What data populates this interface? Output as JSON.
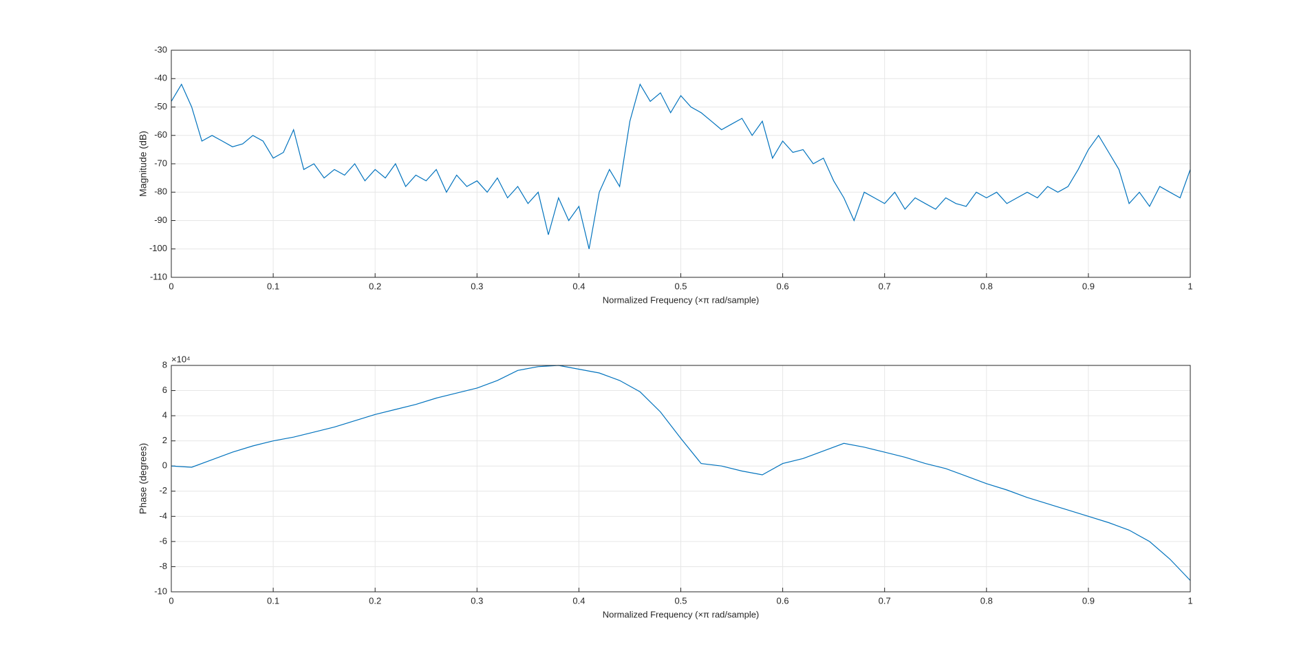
{
  "chart_data": [
    {
      "type": "line",
      "xlabel": "Normalized Frequency  (×π rad/sample)",
      "ylabel": "Magnitude (dB)",
      "xlim": [
        0,
        1
      ],
      "xticks": [
        0,
        0.1,
        0.2,
        0.3,
        0.4,
        0.5,
        0.6,
        0.7,
        0.8,
        0.9,
        1
      ],
      "ylim": [
        -110,
        -30
      ],
      "yticks": [
        -110,
        -100,
        -90,
        -80,
        -70,
        -60,
        -50,
        -40,
        -30
      ],
      "grid": true,
      "series": [
        {
          "color": "#0072bd",
          "x": [
            0,
            0.01,
            0.02,
            0.03,
            0.04,
            0.05,
            0.06,
            0.07,
            0.08,
            0.09,
            0.1,
            0.11,
            0.12,
            0.13,
            0.14,
            0.15,
            0.16,
            0.17,
            0.18,
            0.19,
            0.2,
            0.21,
            0.22,
            0.23,
            0.24,
            0.25,
            0.26,
            0.27,
            0.28,
            0.29,
            0.3,
            0.31,
            0.32,
            0.33,
            0.34,
            0.35,
            0.36,
            0.37,
            0.38,
            0.39,
            0.4,
            0.41,
            0.42,
            0.43,
            0.44,
            0.45,
            0.46,
            0.47,
            0.48,
            0.49,
            0.5,
            0.51,
            0.52,
            0.53,
            0.54,
            0.55,
            0.56,
            0.57,
            0.58,
            0.59,
            0.6,
            0.61,
            0.62,
            0.63,
            0.64,
            0.65,
            0.66,
            0.67,
            0.68,
            0.69,
            0.7,
            0.71,
            0.72,
            0.73,
            0.74,
            0.75,
            0.76,
            0.77,
            0.78,
            0.79,
            0.8,
            0.81,
            0.82,
            0.83,
            0.84,
            0.85,
            0.86,
            0.87,
            0.88,
            0.89,
            0.9,
            0.91,
            0.92,
            0.93,
            0.94,
            0.95,
            0.96,
            0.97,
            0.98,
            0.99,
            1
          ],
          "values": [
            -48,
            -42,
            -50,
            -62,
            -60,
            -62,
            -64,
            -63,
            -60,
            -62,
            -68,
            -66,
            -58,
            -72,
            -70,
            -75,
            -72,
            -74,
            -70,
            -76,
            -72,
            -75,
            -70,
            -78,
            -74,
            -76,
            -72,
            -80,
            -74,
            -78,
            -76,
            -80,
            -75,
            -82,
            -78,
            -84,
            -80,
            -95,
            -82,
            -90,
            -85,
            -100,
            -80,
            -72,
            -78,
            -55,
            -42,
            -48,
            -45,
            -52,
            -46,
            -50,
            -52,
            -55,
            -58,
            -56,
            -54,
            -60,
            -55,
            -68,
            -62,
            -66,
            -65,
            -70,
            -68,
            -76,
            -82,
            -90,
            -80,
            -82,
            -84,
            -80,
            -86,
            -82,
            -84,
            -86,
            -82,
            -84,
            -85,
            -80,
            -82,
            -80,
            -84,
            -82,
            -80,
            -82,
            -78,
            -80,
            -78,
            -72,
            -65,
            -60,
            -66,
            -72,
            -84,
            -80,
            -85,
            -78,
            -80,
            -82,
            -72
          ]
        }
      ]
    },
    {
      "type": "line",
      "xlabel": "Normalized Frequency  (×π rad/sample)",
      "ylabel": "Phase (degrees)",
      "y_multiplier": "×10⁴",
      "xlim": [
        0,
        1
      ],
      "xticks": [
        0,
        0.1,
        0.2,
        0.3,
        0.4,
        0.5,
        0.6,
        0.7,
        0.8,
        0.9,
        1
      ],
      "ylim": [
        -10,
        8
      ],
      "yticks": [
        -10,
        -8,
        -6,
        -4,
        -2,
        0,
        2,
        4,
        6,
        8
      ],
      "grid": true,
      "series": [
        {
          "color": "#0072bd",
          "x": [
            0,
            0.02,
            0.04,
            0.06,
            0.08,
            0.1,
            0.12,
            0.14,
            0.16,
            0.18,
            0.2,
            0.22,
            0.24,
            0.26,
            0.28,
            0.3,
            0.32,
            0.34,
            0.36,
            0.38,
            0.4,
            0.42,
            0.44,
            0.46,
            0.48,
            0.5,
            0.52,
            0.54,
            0.56,
            0.58,
            0.6,
            0.62,
            0.64,
            0.66,
            0.68,
            0.7,
            0.72,
            0.74,
            0.76,
            0.78,
            0.8,
            0.82,
            0.84,
            0.86,
            0.88,
            0.9,
            0.92,
            0.94,
            0.96,
            0.98,
            1
          ],
          "values": [
            0,
            -0.1,
            0.5,
            1.1,
            1.6,
            2.0,
            2.3,
            2.7,
            3.1,
            3.6,
            4.1,
            4.5,
            4.9,
            5.4,
            5.8,
            6.2,
            6.8,
            7.6,
            7.9,
            8.0,
            7.7,
            7.4,
            6.8,
            5.9,
            4.3,
            2.2,
            0.2,
            0.0,
            -0.4,
            -0.7,
            0.2,
            0.6,
            1.2,
            1.8,
            1.5,
            1.1,
            0.7,
            0.2,
            -0.2,
            -0.8,
            -1.4,
            -1.9,
            -2.5,
            -3.0,
            -3.5,
            -4.0,
            -4.5,
            -5.1,
            -6.0,
            -7.4,
            -9.1
          ]
        }
      ]
    }
  ]
}
